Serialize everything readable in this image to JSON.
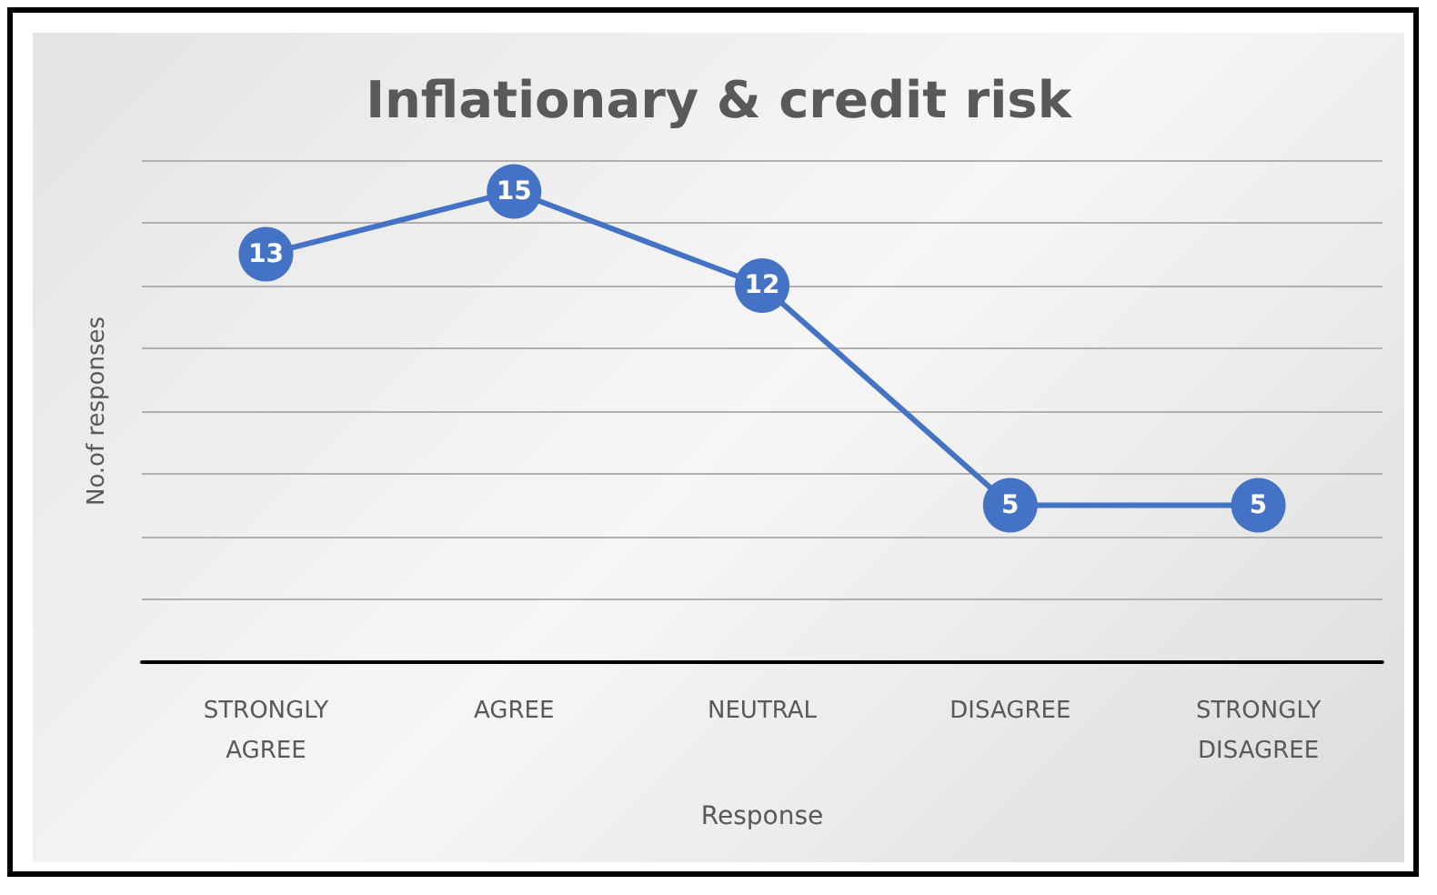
{
  "chart_data": {
    "type": "line",
    "title": "Inflationary & credit risk",
    "xlabel": "Response",
    "ylabel": "No.of responses",
    "categories": [
      "STRONGLY AGREE",
      "AGREE",
      "NEUTRAL",
      "DISAGREE",
      "STRONGLY DISAGREE"
    ],
    "series": [
      {
        "color": "#4472c4",
        "values": [
          13,
          15,
          12,
          5,
          5
        ]
      }
    ],
    "ylim": [
      0,
      16
    ],
    "yticks": [
      0,
      2,
      4,
      6,
      8,
      10,
      12,
      14,
      16
    ],
    "tick_labels": "x",
    "grid": "y",
    "data_labels": true,
    "marker": "circle",
    "line_style": "solid"
  }
}
